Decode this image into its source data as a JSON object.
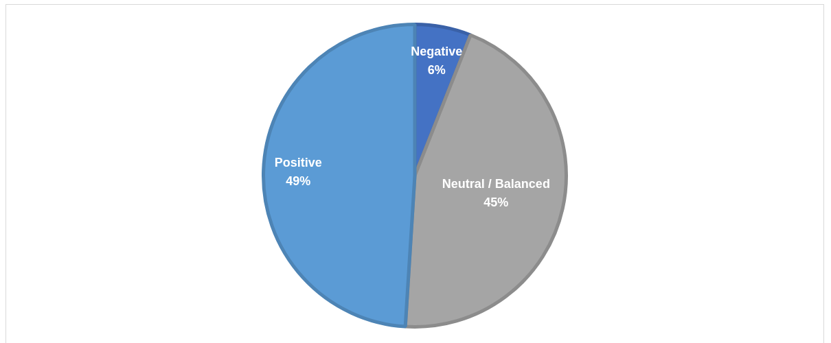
{
  "chart_data": {
    "type": "pie",
    "categories": [
      "Negative",
      "Neutral / Balanced",
      "Positive"
    ],
    "values": [
      6,
      45,
      49
    ],
    "colors": [
      "#4472c4",
      "#a5a5a5",
      "#5b9bd5"
    ],
    "value_labels": [
      "6%",
      "45%",
      "49%"
    ],
    "legend": false
  }
}
